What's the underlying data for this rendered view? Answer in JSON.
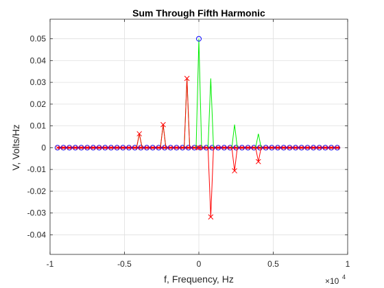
{
  "chart_data": {
    "type": "line",
    "title": "Sum Through Fifth Harmonic",
    "xlabel": "f, Frequency, Hz",
    "ylabel": "V, Volts/Hz",
    "x_exponent_base": "×10",
    "x_exponent_power": "4",
    "x_scale": 10000,
    "xlim": [
      -1,
      1
    ],
    "ylim": [
      -0.049,
      0.059
    ],
    "xticks": [
      -1,
      -0.5,
      0,
      0.5,
      1
    ],
    "xtick_labels": [
      "-1",
      "-0.5",
      "0",
      "0.5",
      "1"
    ],
    "yticks": [
      -0.04,
      -0.03,
      -0.02,
      -0.01,
      0,
      0.01,
      0.02,
      0.03,
      0.04,
      0.05
    ],
    "ytick_labels": [
      "-0.04",
      "-0.03",
      "-0.02",
      "-0.01",
      "0",
      "0.01",
      "0.02",
      "0.03",
      "0.04",
      "0.05"
    ],
    "grid": true,
    "baseline_range_hz": [
      -9500,
      9500
    ],
    "baseline_marker_step_hz": 400,
    "series": [
      {
        "color": "#00ee00",
        "marker": "none",
        "description_style": "magnitude stems",
        "x_hz": [
          -4000,
          -2400,
          -800,
          0,
          800,
          2400,
          4000
        ],
        "values": [
          0.0064,
          0.0106,
          0.0318,
          0.05,
          0.0318,
          0.0106,
          0.0064
        ]
      },
      {
        "color": "#0000ff",
        "marker": "circle",
        "description_style": "real part",
        "x_hz": [
          0
        ],
        "values": [
          0.05
        ]
      },
      {
        "color": "#ff0000",
        "marker": "x",
        "description_style": "imaginary part",
        "x_hz": [
          -4000,
          -2400,
          -800,
          0,
          800,
          2400,
          4000
        ],
        "values": [
          0.0064,
          0.0106,
          0.0318,
          0,
          -0.0318,
          -0.0106,
          -0.0064
        ]
      }
    ],
    "colors": {
      "baseline_line": "#ff0000",
      "baseline_circle": "#0000ff",
      "baseline_x": "#ff0000",
      "baseline_dot": "#00aa00",
      "grid": "#dfdfdf",
      "axes": "#262626"
    }
  }
}
